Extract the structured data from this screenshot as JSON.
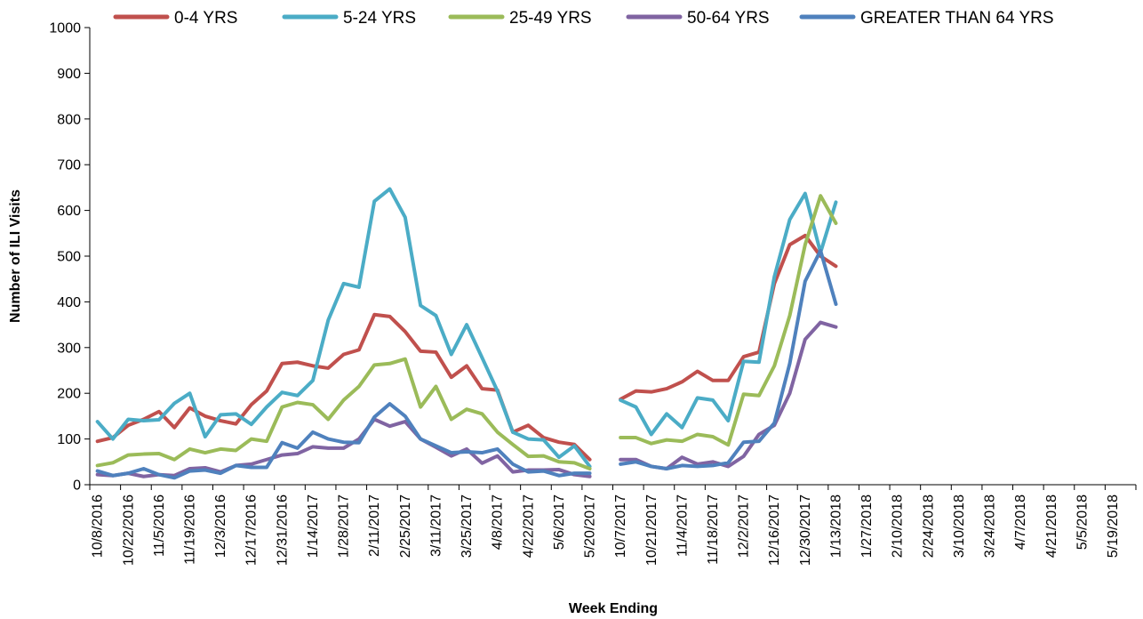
{
  "chart_data": {
    "type": "line",
    "xlabel": "Week Ending",
    "ylabel": "Number of ILI Visits",
    "ylim": [
      0,
      1000
    ],
    "y_ticks": [
      0,
      100,
      200,
      300,
      400,
      500,
      600,
      700,
      800,
      900,
      1000
    ],
    "grid": false,
    "legend_position": "top",
    "x_tick_labels": [
      "10/8/2016",
      "10/22/2016",
      "11/5/2016",
      "11/19/2016",
      "12/3/2016",
      "12/17/2016",
      "12/31/2016",
      "1/14/2017",
      "1/28/2017",
      "2/11/2017",
      "2/25/2017",
      "3/11/2017",
      "3/25/2017",
      "4/8/2017",
      "4/22/2017",
      "5/6/2017",
      "5/20/2017",
      "10/7/2017",
      "10/21/2017",
      "11/4/2017",
      "11/18/2017",
      "12/2/2017",
      "12/16/2017",
      "12/30/2017",
      "1/13/2018",
      "1/27/2018",
      "2/10/2018",
      "2/24/2018",
      "3/10/2018",
      "3/24/2018",
      "4/7/2018",
      "4/21/2018",
      "5/5/2018",
      "5/19/2018"
    ],
    "categories": [
      "10/8/2016",
      "10/15/2016",
      "10/22/2016",
      "10/29/2016",
      "11/5/2016",
      "11/12/2016",
      "11/19/2016",
      "11/26/2016",
      "12/3/2016",
      "12/10/2016",
      "12/17/2016",
      "12/24/2016",
      "12/31/2016",
      "1/7/2017",
      "1/14/2017",
      "1/21/2017",
      "1/28/2017",
      "2/4/2017",
      "2/11/2017",
      "2/18/2017",
      "2/25/2017",
      "3/4/2017",
      "3/11/2017",
      "3/18/2017",
      "3/25/2017",
      "4/1/2017",
      "4/8/2017",
      "4/15/2017",
      "4/22/2017",
      "4/29/2017",
      "5/6/2017",
      "5/13/2017",
      "5/20/2017",
      "",
      "10/7/2017",
      "10/14/2017",
      "10/21/2017",
      "10/28/2017",
      "11/4/2017",
      "11/11/2017",
      "11/18/2017",
      "11/25/2017",
      "12/2/2017",
      "12/9/2017",
      "12/16/2017",
      "12/23/2017",
      "12/30/2017",
      "1/6/2018",
      "1/13/2018",
      "1/20/2018",
      "1/27/2018",
      "2/3/2018",
      "2/10/2018",
      "2/17/2018",
      "2/24/2018",
      "3/3/2018",
      "3/10/2018",
      "3/17/2018",
      "3/24/2018",
      "3/31/2018",
      "4/7/2018",
      "4/14/2018",
      "4/21/2018",
      "4/28/2018",
      "5/5/2018",
      "5/12/2018",
      "5/19/2018",
      "5/26/2018"
    ],
    "series": [
      {
        "name": "0-4 YRS",
        "color": "#c0504d",
        "values": [
          95,
          103,
          130,
          143,
          160,
          125,
          168,
          150,
          140,
          133,
          175,
          205,
          265,
          268,
          260,
          255,
          285,
          295,
          372,
          368,
          335,
          292,
          290,
          235,
          260,
          210,
          207,
          115,
          130,
          103,
          93,
          88,
          55,
          null,
          187,
          205,
          203,
          210,
          225,
          248,
          228,
          228,
          280,
          290,
          440,
          525,
          545,
          500,
          478,
          null,
          null,
          null,
          null,
          null,
          null,
          null,
          null,
          null,
          null,
          null,
          null,
          null,
          null,
          null,
          null,
          null,
          null,
          null
        ]
      },
      {
        "name": "5-24 YRS",
        "color": "#4bacc6",
        "values": [
          138,
          100,
          143,
          140,
          142,
          178,
          200,
          105,
          153,
          155,
          132,
          170,
          202,
          195,
          228,
          360,
          440,
          432,
          620,
          647,
          585,
          392,
          370,
          285,
          350,
          278,
          205,
          115,
          100,
          98,
          60,
          85,
          40,
          null,
          185,
          170,
          110,
          155,
          125,
          190,
          185,
          140,
          270,
          268,
          455,
          580,
          637,
          508,
          618,
          null,
          null,
          null,
          null,
          null,
          null,
          null,
          null,
          null,
          null,
          null,
          null,
          null,
          null,
          null,
          null,
          null,
          null,
          null
        ]
      },
      {
        "name": "25-49 YRS",
        "color": "#9bbb59",
        "values": [
          42,
          48,
          65,
          67,
          68,
          55,
          78,
          70,
          78,
          75,
          100,
          95,
          170,
          180,
          175,
          143,
          185,
          215,
          262,
          265,
          275,
          170,
          215,
          143,
          165,
          155,
          115,
          88,
          62,
          63,
          50,
          48,
          35,
          null,
          103,
          103,
          90,
          98,
          95,
          110,
          105,
          87,
          198,
          195,
          260,
          370,
          525,
          632,
          572,
          null,
          null,
          null,
          null,
          null,
          null,
          null,
          null,
          null,
          null,
          null,
          null,
          null,
          null,
          null,
          null,
          null,
          null,
          null
        ]
      },
      {
        "name": "50-64 YRS",
        "color": "#8064a2",
        "values": [
          22,
          20,
          25,
          18,
          22,
          20,
          35,
          37,
          28,
          42,
          45,
          55,
          65,
          68,
          83,
          80,
          80,
          100,
          143,
          128,
          138,
          100,
          82,
          63,
          78,
          47,
          63,
          28,
          32,
          32,
          33,
          22,
          18,
          null,
          55,
          55,
          40,
          35,
          60,
          45,
          50,
          40,
          62,
          110,
          130,
          200,
          318,
          355,
          345,
          null,
          null,
          null,
          null,
          null,
          null,
          null,
          null,
          null,
          null,
          null,
          null,
          null,
          null,
          null,
          null,
          null,
          null,
          null
        ]
      },
      {
        "name": "GREATER THAN 64 YRS",
        "color": "#4f81bd",
        "values": [
          30,
          20,
          25,
          35,
          22,
          15,
          30,
          32,
          25,
          42,
          38,
          38,
          92,
          80,
          115,
          100,
          93,
          92,
          148,
          177,
          150,
          100,
          85,
          70,
          72,
          70,
          78,
          45,
          28,
          30,
          20,
          25,
          25,
          null,
          45,
          50,
          40,
          35,
          42,
          40,
          42,
          48,
          93,
          95,
          135,
          265,
          445,
          512,
          395,
          null,
          null,
          null,
          null,
          null,
          null,
          null,
          null,
          null,
          null,
          null,
          null,
          null,
          null,
          null,
          null,
          null,
          null,
          null
        ]
      }
    ]
  }
}
